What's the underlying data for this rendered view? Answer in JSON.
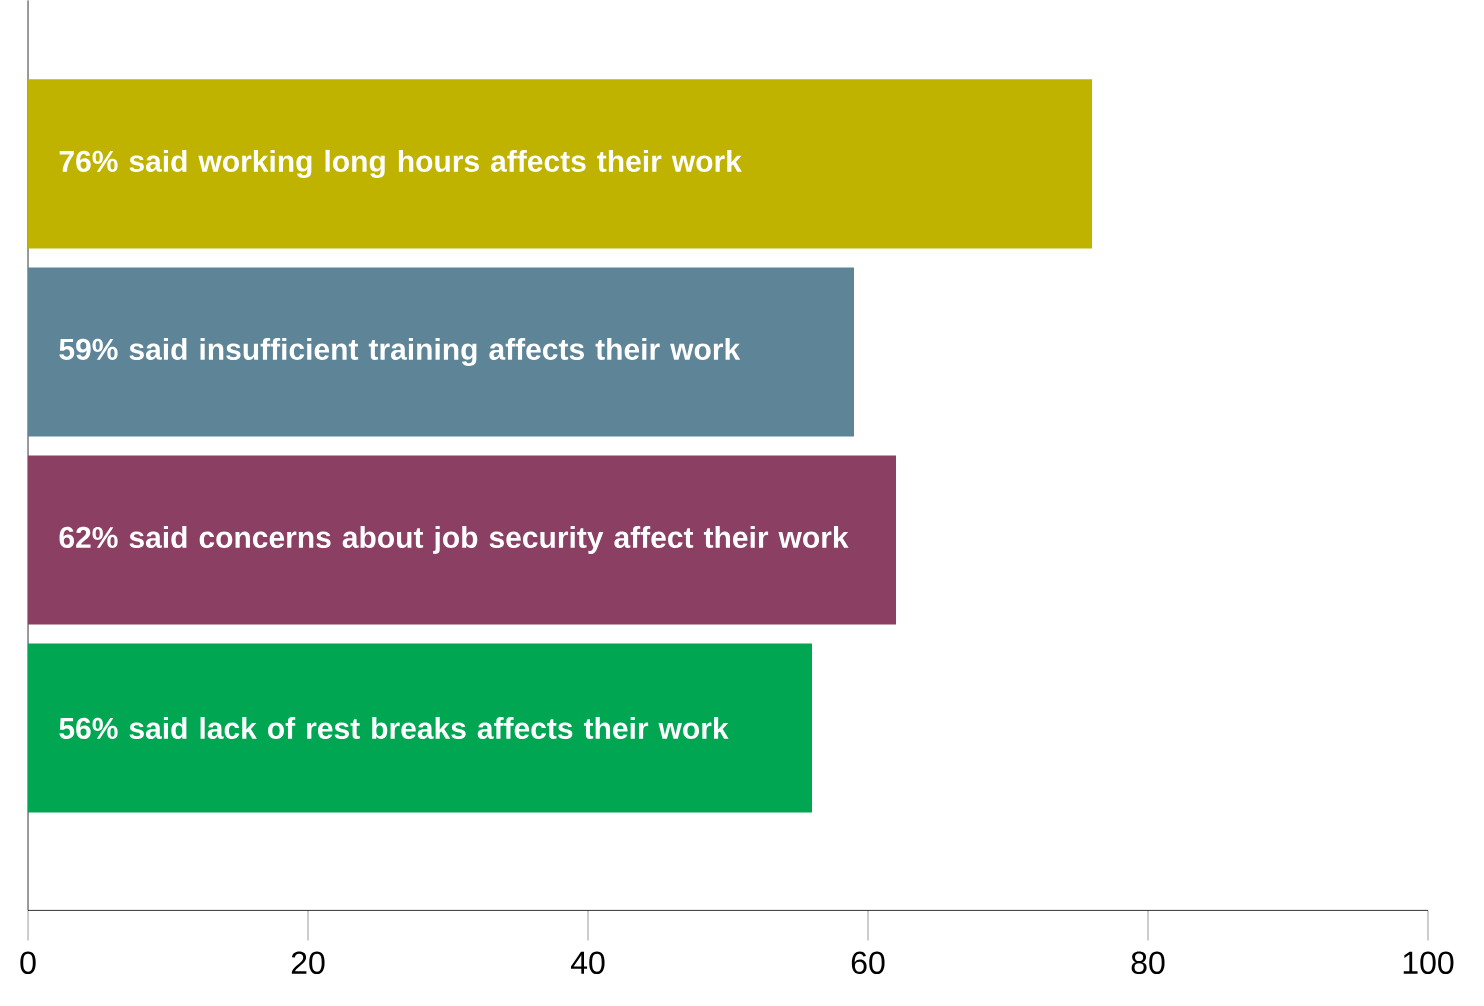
{
  "chart_data": {
    "type": "bar",
    "orientation": "horizontal",
    "categories": [
      "76% said working long hours affects their work",
      "59% said insufficient training affects their work",
      "62% said concerns about job security affect their work",
      "56% said lack of rest breaks affects their work"
    ],
    "values": [
      76,
      59,
      62,
      56
    ],
    "colors": [
      "#bfb300",
      "#5e8597",
      "#8b3f62",
      "#00a651"
    ],
    "xlim": [
      0,
      100
    ],
    "xticks": [
      0,
      20,
      40,
      60,
      80,
      100
    ],
    "grid": false
  }
}
